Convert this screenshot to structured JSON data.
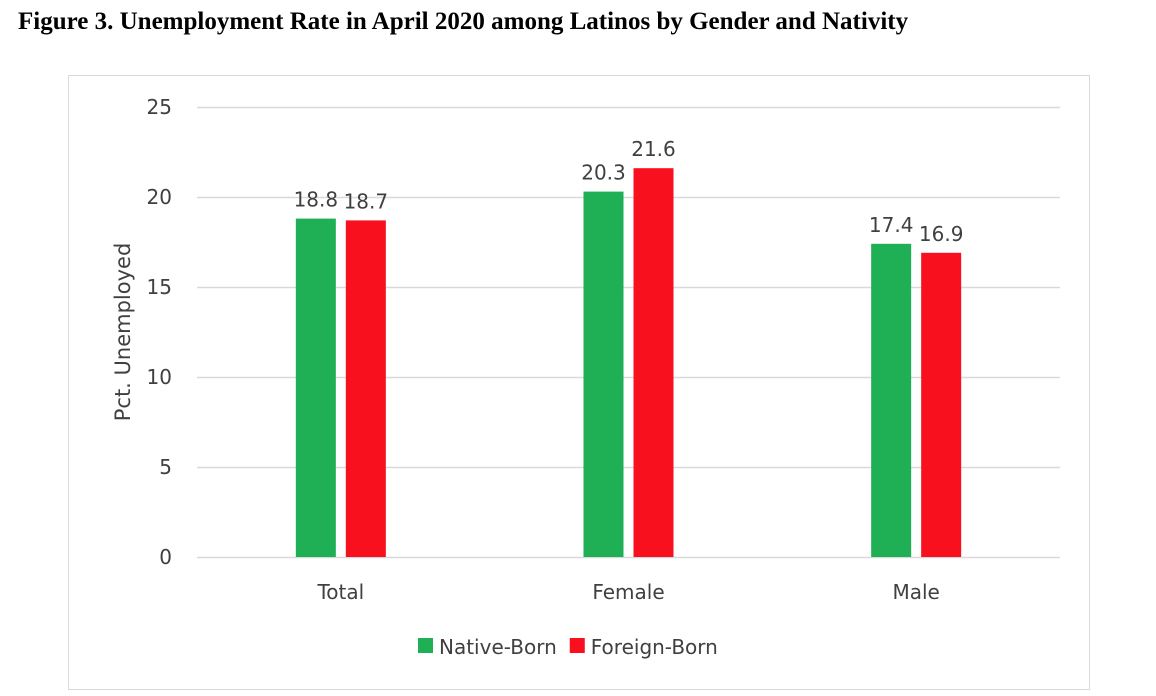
{
  "figure_title": "Figure 3. Unemployment Rate in April 2020 among Latinos by Gender and Nativity",
  "chart_data": {
    "type": "bar",
    "title": "Figure 3. Unemployment Rate in April 2020 among Latinos by Gender and Nativity",
    "xlabel": "",
    "ylabel": "Pct. Unemployed",
    "ylim": [
      0,
      25
    ],
    "yticks": [
      0,
      5,
      10,
      15,
      20,
      25
    ],
    "grid": true,
    "legend": "bottom",
    "categories": [
      "Total",
      "Female",
      "Male"
    ],
    "series": [
      {
        "name": "Native-Born",
        "color": "#1faf55",
        "values": [
          18.8,
          20.3,
          17.4
        ]
      },
      {
        "name": "Foreign-Born",
        "color": "#f8101f",
        "values": [
          18.7,
          21.6,
          16.9
        ]
      }
    ]
  }
}
